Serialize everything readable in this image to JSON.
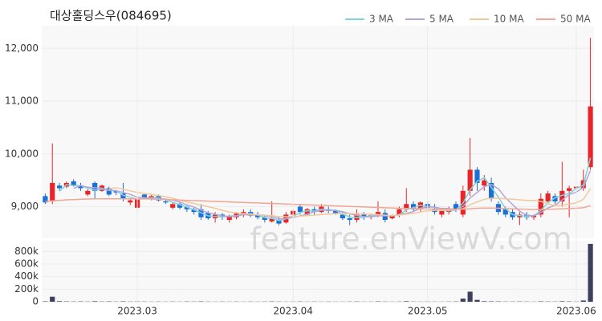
{
  "title": "대상홀딩스우(084695)",
  "watermark": "feature.enViewV.com",
  "chart_data": [
    {
      "type": "candlestick",
      "up_color": "#e8262a",
      "down_color": "#1c6fd8",
      "grid": true,
      "ylim": [
        8400,
        12430
      ],
      "yticks": [
        {
          "value": 9000,
          "label": "9,000"
        },
        {
          "value": 10000,
          "label": "10,000"
        },
        {
          "value": 11000,
          "label": "11,000"
        },
        {
          "value": 12000,
          "label": "12,000"
        }
      ],
      "open": [
        9200,
        9100,
        9400,
        9380,
        9480,
        9400,
        9230,
        9450,
        9300,
        9350,
        9300,
        9250,
        9080,
        8980,
        9230,
        9150,
        9200,
        9100,
        8980,
        9050,
        9000,
        8950,
        8950,
        8880,
        8780,
        8850,
        8750,
        8800,
        8880,
        8900,
        8850,
        8800,
        8720,
        8750,
        8700,
        8850,
        9000,
        8850,
        8950,
        8900,
        8950,
        8920,
        8850,
        8780,
        8750,
        8850,
        8820,
        8850,
        8880,
        8780,
        8850,
        8950,
        9050,
        8950,
        9050,
        8950,
        8850,
        8900,
        9050,
        8850,
        9300,
        9700,
        9400,
        9450,
        9050,
        8950,
        8900,
        8800,
        8850,
        8800,
        8850,
        9100,
        9200,
        9100,
        9300,
        9350,
        9350,
        9750
      ],
      "high": [
        9250,
        10200,
        9450,
        9480,
        9520,
        9450,
        9330,
        9480,
        9420,
        9380,
        9320,
        9450,
        9150,
        9180,
        9250,
        9230,
        9230,
        9150,
        9080,
        9080,
        9020,
        9000,
        9050,
        8920,
        8900,
        8880,
        8850,
        8900,
        8950,
        8950,
        8900,
        8820,
        9100,
        8800,
        8900,
        8950,
        9050,
        8980,
        9000,
        9050,
        9000,
        8950,
        8900,
        8850,
        8950,
        8900,
        8870,
        9100,
        8950,
        8850,
        9000,
        9350,
        9100,
        9100,
        9100,
        9050,
        8950,
        9000,
        9100,
        9400,
        10300,
        9750,
        9600,
        9550,
        9100,
        9000,
        8950,
        8900,
        8900,
        8850,
        9250,
        9300,
        9250,
        9850,
        9400,
        9400,
        9700,
        12200
      ],
      "low": [
        9050,
        9050,
        9300,
        9350,
        9380,
        9300,
        9200,
        9150,
        9280,
        9200,
        9220,
        9100,
        9030,
        8950,
        9150,
        9120,
        9100,
        9050,
        8950,
        8950,
        8900,
        8850,
        8750,
        8750,
        8700,
        8750,
        8700,
        8760,
        8800,
        8800,
        8760,
        8700,
        8700,
        8650,
        8680,
        8820,
        8850,
        8820,
        8850,
        8880,
        8880,
        8850,
        8750,
        8650,
        8700,
        8750,
        8760,
        8800,
        8700,
        8760,
        8800,
        8900,
        8900,
        8900,
        8900,
        8850,
        8800,
        8850,
        8900,
        8800,
        9200,
        9300,
        9300,
        9100,
        8850,
        8800,
        8750,
        8650,
        8750,
        8750,
        8800,
        9050,
        9050,
        9000,
        8800,
        9300,
        9300,
        9700
      ],
      "close": [
        9080,
        9450,
        9350,
        9450,
        9400,
        9350,
        9300,
        9300,
        9400,
        9230,
        9270,
        9150,
        9120,
        9150,
        9170,
        9200,
        9120,
        9080,
        9050,
        8980,
        8950,
        8900,
        8800,
        8780,
        8850,
        8800,
        8820,
        8870,
        8900,
        8830,
        8800,
        8750,
        8780,
        8680,
        8850,
        8920,
        8900,
        8950,
        8900,
        9000,
        8920,
        8880,
        8780,
        8750,
        8850,
        8800,
        8840,
        8900,
        8750,
        8830,
        8950,
        9050,
        8950,
        9080,
        8980,
        8900,
        8920,
        8950,
        8950,
        9300,
        9700,
        9450,
        9500,
        9150,
        8900,
        8850,
        8800,
        8850,
        8800,
        8830,
        9150,
        9250,
        9100,
        9300,
        9350,
        9380,
        9500,
        10900
      ],
      "series": [
        {
          "name": "3 MA",
          "color": "#7fd4d6",
          "values": [
            null,
            null,
            9293,
            9417,
            9400,
            9400,
            9350,
            9317,
            9333,
            9310,
            9300,
            9217,
            9180,
            9140,
            9147,
            9173,
            9163,
            9133,
            9083,
            9037,
            8993,
            8943,
            8883,
            8827,
            8810,
            8810,
            8823,
            8830,
            8863,
            8867,
            8843,
            8793,
            8777,
            8737,
            8770,
            8817,
            8890,
            8923,
            8917,
            8950,
            8940,
            8933,
            8860,
            8803,
            8793,
            8800,
            8830,
            8847,
            8830,
            8827,
            8843,
            8943,
            8983,
            9027,
            9003,
            8987,
            8933,
            8923,
            8940,
            9067,
            9317,
            9483,
            9550,
            9367,
            9183,
            8967,
            8850,
            8833,
            8817,
            8827,
            8927,
            9077,
            9167,
            9217,
            9250,
            9343,
            9410,
            9927
          ]
        },
        {
          "name": "5 MA",
          "color": "#b7a3d9",
          "values": [
            null,
            null,
            null,
            null,
            9346,
            9400,
            9370,
            9360,
            9350,
            9316,
            9300,
            9270,
            9234,
            9178,
            9172,
            9158,
            9148,
            9144,
            9124,
            9086,
            9036,
            8992,
            8936,
            8882,
            8856,
            8826,
            8810,
            8824,
            8848,
            8844,
            8844,
            8830,
            8812,
            8768,
            8772,
            8796,
            8826,
            8860,
            8904,
            8934,
            8934,
            8930,
            8906,
            8866,
            8836,
            8812,
            8808,
            8828,
            8828,
            8824,
            8854,
            8876,
            8906,
            8972,
            9002,
            8992,
            8966,
            8966,
            8940,
            9004,
            9164,
            9270,
            9380,
            9420,
            9340,
            9170,
            9040,
            8916,
            8840,
            8826,
            8886,
            8976,
            9026,
            9126,
            9230,
            9276,
            9366,
            9686
          ]
        },
        {
          "name": "10 MA",
          "color": "#f2c999",
          "values": [
            null,
            null,
            null,
            null,
            null,
            null,
            null,
            null,
            null,
            9341,
            9360,
            9330,
            9300,
            9270,
            9250,
            9235,
            9210,
            9190,
            9160,
            9120,
            9090,
            9060,
            9030,
            9000,
            8970,
            8930,
            8900,
            8880,
            8870,
            8860,
            8845,
            8840,
            8830,
            8810,
            8810,
            8815,
            8820,
            8830,
            8840,
            8850,
            8860,
            8870,
            8870,
            8870,
            8870,
            8860,
            8855,
            8850,
            8840,
            8830,
            8840,
            8860,
            8870,
            8900,
            8920,
            8930,
            8930,
            8940,
            8950,
            8960,
            9040,
            9090,
            9140,
            9160,
            9160,
            9150,
            9140,
            9130,
            9120,
            9120,
            9100,
            9060,
            9020,
            9030,
            9050,
            9070,
            9140,
            9340
          ]
        },
        {
          "name": "50 MA",
          "color": "#f2a593",
          "values": [
            9100,
            9110,
            9120,
            9130,
            9135,
            9140,
            9145,
            9150,
            9150,
            9150,
            9150,
            9150,
            9150,
            9150,
            9150,
            9145,
            9140,
            9135,
            9130,
            9125,
            9120,
            9115,
            9110,
            9105,
            9100,
            9095,
            9090,
            9085,
            9080,
            9075,
            9070,
            9065,
            9060,
            9055,
            9050,
            9045,
            9040,
            9035,
            9030,
            9025,
            9020,
            9015,
            9010,
            9005,
            9000,
            8995,
            8990,
            8985,
            8980,
            8975,
            8970,
            8965,
            8965,
            8960,
            8960,
            8955,
            8955,
            8950,
            8950,
            8950,
            8960,
            8970,
            8975,
            8975,
            8970,
            8965,
            8960,
            8955,
            8950,
            8945,
            8945,
            8950,
            8955,
            8960,
            8965,
            8970,
            8980,
            9020
          ]
        }
      ]
    },
    {
      "type": "bar",
      "color": "#3c3f5e",
      "grid": true,
      "ylim": [
        0,
        970000
      ],
      "yticks": [
        0,
        {
          "value": 200000,
          "label": "200k"
        },
        {
          "value": 400000,
          "label": "400k"
        },
        {
          "value": 600000,
          "label": "600k"
        },
        {
          "value": 800000,
          "label": "800k"
        }
      ],
      "categories": [
        null,
        null,
        null,
        null,
        null,
        null,
        null,
        null,
        null,
        null,
        null,
        null,
        null,
        "2023.03",
        null,
        null,
        null,
        null,
        null,
        null,
        null,
        null,
        null,
        null,
        null,
        null,
        null,
        null,
        null,
        null,
        null,
        null,
        null,
        null,
        null,
        "2023.04",
        null,
        null,
        null,
        null,
        null,
        null,
        null,
        null,
        null,
        null,
        null,
        null,
        null,
        null,
        null,
        null,
        null,
        null,
        "2023.05",
        null,
        null,
        null,
        null,
        null,
        null,
        null,
        null,
        null,
        null,
        null,
        null,
        null,
        null,
        null,
        null,
        null,
        null,
        null,
        null,
        "2023.06",
        null,
        null
      ],
      "values": [
        6000,
        80000,
        9000,
        5000,
        4000,
        5000,
        3000,
        8000,
        4000,
        5000,
        3000,
        6000,
        3000,
        4000,
        3000,
        2000,
        3000,
        2000,
        3000,
        2000,
        4000,
        3000,
        5000,
        3000,
        2000,
        3000,
        2000,
        3000,
        2000,
        3000,
        2000,
        3000,
        5000,
        3000,
        2000,
        3000,
        4000,
        2000,
        3000,
        2000,
        3000,
        2000,
        2000,
        3000,
        4000,
        2000,
        2000,
        5000,
        3000,
        2000,
        3000,
        8000,
        3000,
        2000,
        3000,
        2000,
        2000,
        3000,
        4000,
        50000,
        160000,
        30000,
        8000,
        6000,
        5000,
        3000,
        3000,
        4000,
        3000,
        2000,
        6000,
        4000,
        3000,
        8000,
        5000,
        3000,
        20000,
        920000
      ]
    }
  ]
}
